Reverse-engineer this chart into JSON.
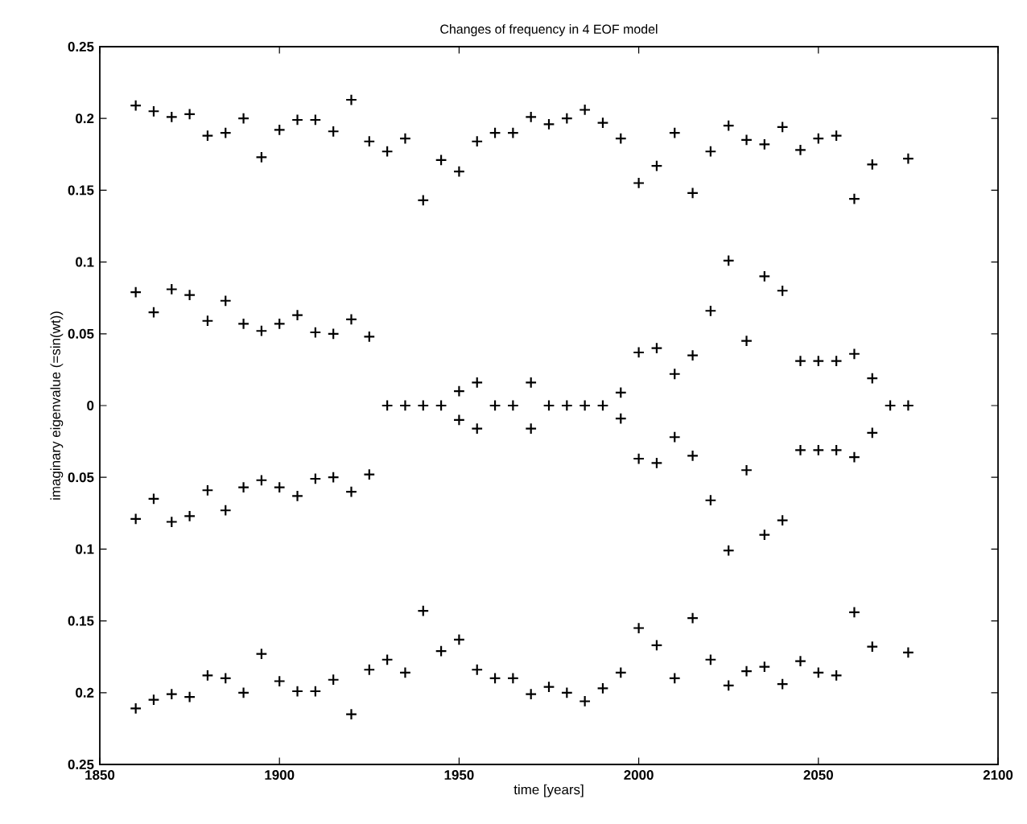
{
  "chart_data": {
    "type": "scatter",
    "title": "Changes of frequency in 4 EOF model",
    "xlabel": "time [years]",
    "ylabel": "imaginary eigenvalue (=sin(wt))",
    "marker": "cross",
    "xlim": [
      1850,
      2100
    ],
    "xticks": [
      1850,
      1900,
      1950,
      2000,
      2050,
      2100
    ],
    "ylim": [
      -0.25,
      0.25
    ],
    "yticks": [
      {
        "value": -0.25,
        "label": "0.25"
      },
      {
        "value": -0.2,
        "label": "0.2"
      },
      {
        "value": -0.15,
        "label": "0.15"
      },
      {
        "value": -0.1,
        "label": "0.1"
      },
      {
        "value": -0.05,
        "label": "0.05"
      },
      0,
      0.05,
      0.1,
      0.15,
      0.2,
      0.25
    ],
    "series": [
      {
        "color": "#000000",
        "x": [
          1860,
          1865,
          1870,
          1875,
          1880,
          1885,
          1890,
          1895,
          1900,
          1905,
          1910,
          1915,
          1920,
          1925,
          1930,
          1935,
          1940,
          1945,
          1950,
          1955,
          1960,
          1965,
          1970,
          1975,
          1980,
          1985,
          1990,
          1995,
          2000,
          2005,
          2010,
          2015,
          2020,
          2025,
          2030,
          2035,
          2040,
          2045,
          2050,
          2055,
          2060,
          2065,
          2075
        ],
        "values": [
          0.209,
          0.205,
          0.201,
          0.203,
          0.188,
          0.19,
          0.2,
          0.173,
          0.192,
          0.199,
          0.199,
          0.191,
          0.213,
          0.184,
          0.177,
          0.186,
          0.143,
          0.171,
          0.163,
          0.184,
          0.19,
          0.19,
          0.201,
          0.196,
          0.2,
          0.206,
          0.197,
          0.186,
          0.155,
          0.167,
          0.19,
          0.148,
          0.177,
          0.195,
          0.185,
          0.182,
          0.194,
          0.178,
          0.186,
          0.188,
          0.144,
          0.168,
          0.172
        ]
      },
      {
        "color": "#000000",
        "x": [
          1860,
          1865,
          1870,
          1875,
          1880,
          1885,
          1890,
          1895,
          1900,
          1905,
          1910,
          1915,
          1920,
          1925,
          1930,
          1935,
          1940,
          1945,
          1950,
          1955,
          1960,
          1965,
          1970,
          1975,
          1980,
          1985,
          1990,
          1995,
          2000,
          2005,
          2010,
          2015,
          2020,
          2025,
          2030,
          2035,
          2040,
          2045,
          2050,
          2055,
          2060,
          2065,
          2070,
          2075
        ],
        "values": [
          0.079,
          0.065,
          0.081,
          0.077,
          0.059,
          0.073,
          0.057,
          0.052,
          0.057,
          0.063,
          0.051,
          0.05,
          0.06,
          0.048,
          0,
          0,
          0,
          0,
          0.01,
          0.016,
          0,
          0,
          0.016,
          0,
          0,
          0,
          0,
          0.009,
          0.037,
          0.04,
          0.022,
          0.035,
          0.066,
          0.101,
          0.045,
          0.09,
          0.08,
          0.031,
          0.031,
          0.031,
          0.036,
          0.019,
          0,
          0
        ]
      },
      {
        "color": "#000000",
        "x": [
          1860,
          1865,
          1870,
          1875,
          1880,
          1885,
          1890,
          1895,
          1900,
          1905,
          1910,
          1915,
          1920,
          1925,
          1950,
          1955,
          1970,
          1995,
          2000,
          2005,
          2010,
          2015,
          2020,
          2025,
          2030,
          2035,
          2040,
          2045,
          2050,
          2055,
          2060,
          2065
        ],
        "values": [
          -0.079,
          -0.065,
          -0.081,
          -0.077,
          -0.059,
          -0.073,
          -0.057,
          -0.052,
          -0.057,
          -0.063,
          -0.051,
          -0.05,
          -0.06,
          -0.048,
          -0.01,
          -0.016,
          -0.016,
          -0.009,
          -0.037,
          -0.04,
          -0.022,
          -0.035,
          -0.066,
          -0.101,
          -0.045,
          -0.09,
          -0.08,
          -0.031,
          -0.031,
          -0.031,
          -0.036,
          -0.019
        ]
      },
      {
        "color": "#000000",
        "x": [
          1860,
          1865,
          1870,
          1875,
          1880,
          1885,
          1890,
          1895,
          1900,
          1905,
          1910,
          1915,
          1920,
          1925,
          1930,
          1935,
          1940,
          1945,
          1950,
          1955,
          1960,
          1965,
          1970,
          1975,
          1980,
          1985,
          1990,
          1995,
          2000,
          2005,
          2010,
          2015,
          2020,
          2025,
          2030,
          2035,
          2040,
          2045,
          2050,
          2055,
          2060,
          2065,
          2075
        ],
        "values": [
          -0.211,
          -0.205,
          -0.201,
          -0.203,
          -0.188,
          -0.19,
          -0.2,
          -0.173,
          -0.192,
          -0.199,
          -0.199,
          -0.191,
          -0.215,
          -0.184,
          -0.177,
          -0.186,
          -0.143,
          -0.171,
          -0.163,
          -0.184,
          -0.19,
          -0.19,
          -0.201,
          -0.196,
          -0.2,
          -0.206,
          -0.197,
          -0.186,
          -0.155,
          -0.167,
          -0.19,
          -0.148,
          -0.177,
          -0.195,
          -0.185,
          -0.182,
          -0.194,
          -0.178,
          -0.186,
          -0.188,
          -0.144,
          -0.168,
          -0.172
        ]
      }
    ]
  }
}
